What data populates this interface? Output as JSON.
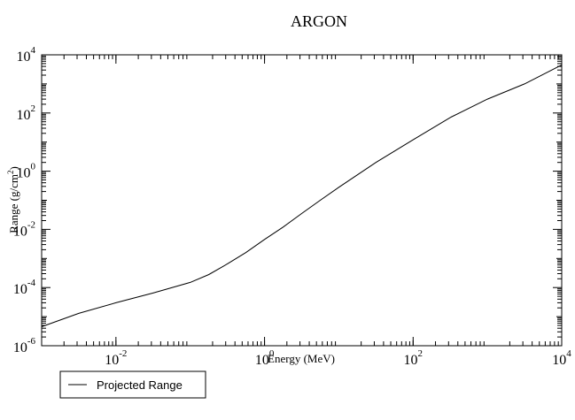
{
  "chart_data": {
    "type": "line",
    "title": "ARGON",
    "xlabel": "Energy (MeV)",
    "ylabel": "Range (g/cm²)",
    "ylabel_parts": {
      "pre": "Range (g/cm",
      "sup": "2",
      "post": ")"
    },
    "xscale": "log",
    "yscale": "log",
    "xlim": [
      0.001,
      10000
    ],
    "ylim": [
      1e-06,
      10000
    ],
    "x_ticks": [
      {
        "base": "10",
        "exp": "-2",
        "value": 0.01
      },
      {
        "base": "10",
        "exp": "0",
        "value": 1
      },
      {
        "base": "10",
        "exp": "2",
        "value": 100
      },
      {
        "base": "10",
        "exp": "4",
        "value": 10000
      }
    ],
    "y_ticks": [
      {
        "base": "10",
        "exp": "-6",
        "value": 1e-06
      },
      {
        "base": "10",
        "exp": "-4",
        "value": 0.0001
      },
      {
        "base": "10",
        "exp": "-2",
        "value": 0.01
      },
      {
        "base": "10",
        "exp": "0",
        "value": 1
      },
      {
        "base": "10",
        "exp": "2",
        "value": 100
      },
      {
        "base": "10",
        "exp": "4",
        "value": 10000
      }
    ],
    "series": [
      {
        "name": "Projected Range",
        "color": "#000000",
        "x": [
          0.001,
          0.00316,
          0.01,
          0.0316,
          0.1,
          0.178,
          0.316,
          0.562,
          1,
          1.78,
          3.16,
          5.62,
          10,
          31.6,
          100,
          316,
          1000,
          3160,
          10000
        ],
        "y": [
          4.5e-06,
          1.3e-05,
          3e-05,
          6.5e-05,
          0.00015,
          0.00028,
          0.00065,
          0.0016,
          0.0045,
          0.012,
          0.035,
          0.1,
          0.28,
          2.0,
          12,
          70,
          300,
          1000,
          4500
        ]
      }
    ],
    "grid": false,
    "legend_position": "bottom-left"
  }
}
